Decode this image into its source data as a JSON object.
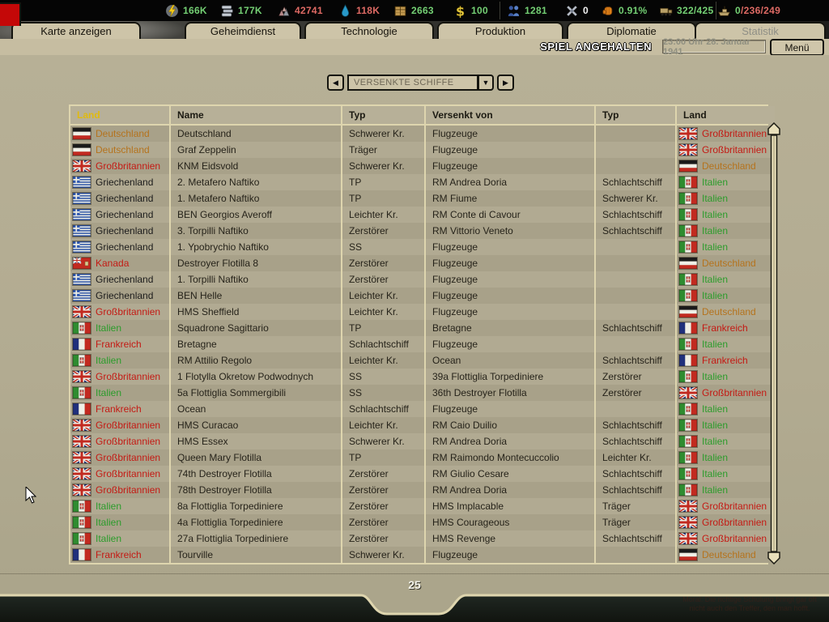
{
  "resource_bar": {
    "items": [
      {
        "icon": "energy-icon",
        "value": "166K",
        "color": "green"
      },
      {
        "icon": "metal-icon",
        "value": "177K",
        "color": "green"
      },
      {
        "icon": "rare-materials-icon",
        "value": "42741",
        "color": "red"
      },
      {
        "icon": "oil-icon",
        "value": "118K",
        "color": "red"
      },
      {
        "icon": "supplies-icon",
        "value": "2663",
        "color": "green"
      },
      {
        "icon": "money-icon",
        "value": "100",
        "color": "green"
      },
      {
        "icon": "manpower-icon",
        "value": "1281",
        "color": "green"
      },
      {
        "icon": "nukes-icon",
        "value": "0",
        "color": "white"
      },
      {
        "icon": "dissent-icon",
        "value": "0.91%",
        "color": "green"
      },
      {
        "icon": "transports-icon",
        "value": "322/425",
        "color": "green"
      },
      {
        "icon": "convoys-icon",
        "segments": [
          {
            "text": "0",
            "color": "green"
          },
          {
            "text": "/236/249",
            "color": "red"
          }
        ]
      }
    ],
    "colors": {
      "green": "#74d074",
      "red": "#de6a64",
      "white": "#f2f2f2"
    }
  },
  "tabs": [
    {
      "label": "Karte anzeigen",
      "state": "normal"
    },
    {
      "label": "Geheimdienst",
      "state": "normal"
    },
    {
      "label": "Technologie",
      "state": "normal"
    },
    {
      "label": "Produktion",
      "state": "normal"
    },
    {
      "label": "Diplomatie",
      "state": "normal"
    },
    {
      "label": "Statistik",
      "state": "active-disabled"
    }
  ],
  "status": {
    "paused_label": "SPIEL ANGEHALTEN",
    "datetime": "23:00 Uhr 28. Januar 1941",
    "menu_label": "Menü"
  },
  "selector": {
    "value": "VERSENKTE SCHIFFE",
    "prev_icon": "left-arrow-icon",
    "next_icon": "right-arrow-icon",
    "dropdown_icon": "down-arrow-icon"
  },
  "countries": {
    "de": {
      "label": "Deutschland",
      "color": "#b5731d",
      "flag": "de"
    },
    "gb": {
      "label": "Großbritannien",
      "color": "#c41a14",
      "flag": "gb"
    },
    "gr": {
      "label": "Griechenland",
      "color": "#1c1c1c",
      "flag": "gr"
    },
    "ca": {
      "label": "Kanada",
      "color": "#c41a14",
      "flag": "ca"
    },
    "it": {
      "label": "Italien",
      "color": "#2b9c2b",
      "flag": "it"
    },
    "fr": {
      "label": "Frankreich",
      "color": "#c41a14",
      "flag": "fr"
    }
  },
  "table": {
    "headers": [
      "Land",
      "Name",
      "Typ",
      "Versenkt von",
      "Typ",
      "Land"
    ],
    "sorted_header_index": 0,
    "rows": [
      {
        "land": "de",
        "name": "Deutschland",
        "typ": "Schwerer Kr.",
        "von": "Flugzeuge",
        "typ2": "",
        "land2": "gb"
      },
      {
        "land": "de",
        "name": "Graf Zeppelin",
        "typ": "Träger",
        "von": "Flugzeuge",
        "typ2": "",
        "land2": "gb"
      },
      {
        "land": "gb",
        "name": "KNM Eidsvold",
        "typ": "Schwerer Kr.",
        "von": "Flugzeuge",
        "typ2": "",
        "land2": "de"
      },
      {
        "land": "gr",
        "name": "2. Metafero Naftiko",
        "typ": "TP",
        "von": "RM Andrea Doria",
        "typ2": "Schlachtschiff",
        "land2": "it"
      },
      {
        "land": "gr",
        "name": "1. Metafero Naftiko",
        "typ": "TP",
        "von": "RM Fiume",
        "typ2": "Schwerer Kr.",
        "land2": "it"
      },
      {
        "land": "gr",
        "name": "BEN Georgios Averoff",
        "typ": "Leichter Kr.",
        "von": "RM Conte di Cavour",
        "typ2": "Schlachtschiff",
        "land2": "it"
      },
      {
        "land": "gr",
        "name": "3. Torpilli Naftiko",
        "typ": "Zerstörer",
        "von": "RM Vittorio Veneto",
        "typ2": "Schlachtschiff",
        "land2": "it"
      },
      {
        "land": "gr",
        "name": "1. Ypobrychio Naftiko",
        "typ": "SS",
        "von": "Flugzeuge",
        "typ2": "",
        "land2": "it"
      },
      {
        "land": "ca",
        "name": "Destroyer Flotilla 8",
        "typ": "Zerstörer",
        "von": "Flugzeuge",
        "typ2": "",
        "land2": "de"
      },
      {
        "land": "gr",
        "name": "1. Torpilli Naftiko",
        "typ": "Zerstörer",
        "von": "Flugzeuge",
        "typ2": "",
        "land2": "it"
      },
      {
        "land": "gr",
        "name": "BEN Helle",
        "typ": "Leichter Kr.",
        "von": "Flugzeuge",
        "typ2": "",
        "land2": "it"
      },
      {
        "land": "gb",
        "name": "HMS Sheffield",
        "typ": "Leichter Kr.",
        "von": "Flugzeuge",
        "typ2": "",
        "land2": "de"
      },
      {
        "land": "it",
        "name": "Squadrone Sagittario",
        "typ": "TP",
        "von": "Bretagne",
        "typ2": "Schlachtschiff",
        "land2": "fr"
      },
      {
        "land": "fr",
        "name": "Bretagne",
        "typ": "Schlachtschiff",
        "von": "Flugzeuge",
        "typ2": "",
        "land2": "it"
      },
      {
        "land": "it",
        "name": "RM Attilio Regolo",
        "typ": "Leichter Kr.",
        "von": "Ocean",
        "typ2": "Schlachtschiff",
        "land2": "fr"
      },
      {
        "land": "gb",
        "name": "1 Flotylla Okretow Podwodnych",
        "typ": "SS",
        "von": "39a Flottiglia Torpediniere",
        "typ2": "Zerstörer",
        "land2": "it"
      },
      {
        "land": "it",
        "name": "5a Flottiglia Sommergibili",
        "typ": "SS",
        "von": "36th Destroyer Flotilla",
        "typ2": "Zerstörer",
        "land2": "gb"
      },
      {
        "land": "fr",
        "name": "Ocean",
        "typ": "Schlachtschiff",
        "von": "Flugzeuge",
        "typ2": "",
        "land2": "it"
      },
      {
        "land": "gb",
        "name": "HMS Curacao",
        "typ": "Leichter Kr.",
        "von": "RM Caio Duilio",
        "typ2": "Schlachtschiff",
        "land2": "it"
      },
      {
        "land": "gb",
        "name": "HMS Essex",
        "typ": "Schwerer Kr.",
        "von": "RM Andrea Doria",
        "typ2": "Schlachtschiff",
        "land2": "it"
      },
      {
        "land": "gb",
        "name": "Queen Mary Flotilla",
        "typ": "TP",
        "von": "RM Raimondo Montecuccolio",
        "typ2": "Leichter Kr.",
        "land2": "it"
      },
      {
        "land": "gb",
        "name": "74th Destroyer Flotilla",
        "typ": "Zerstörer",
        "von": "RM Giulio Cesare",
        "typ2": "Schlachtschiff",
        "land2": "it"
      },
      {
        "land": "gb",
        "name": "78th Destroyer Flotilla",
        "typ": "Zerstörer",
        "von": "RM Andrea Doria",
        "typ2": "Schlachtschiff",
        "land2": "it"
      },
      {
        "land": "it",
        "name": "8a Flottiglia Torpediniere",
        "typ": "Zerstörer",
        "von": "HMS Implacable",
        "typ2": "Träger",
        "land2": "gb"
      },
      {
        "land": "it",
        "name": "4a Flottiglia Torpediniere",
        "typ": "Zerstörer",
        "von": "HMS Courageous",
        "typ2": "Träger",
        "land2": "gb"
      },
      {
        "land": "it",
        "name": "27a Flottiglia Torpediniere",
        "typ": "Zerstörer",
        "von": "HMS Revenge",
        "typ2": "Schlachtschiff",
        "land2": "gb"
      },
      {
        "land": "fr",
        "name": "Tourville",
        "typ": "Schwerer Kr.",
        "von": "Flugzeuge",
        "typ2": "",
        "land2": "de"
      }
    ]
  },
  "footer": {
    "page": "25"
  },
  "tooltip": {
    "lines": [
      "Moral: Die richtige Schulung bringt gar oft",
      "nicht auch den Treffer, den man hofft."
    ]
  }
}
